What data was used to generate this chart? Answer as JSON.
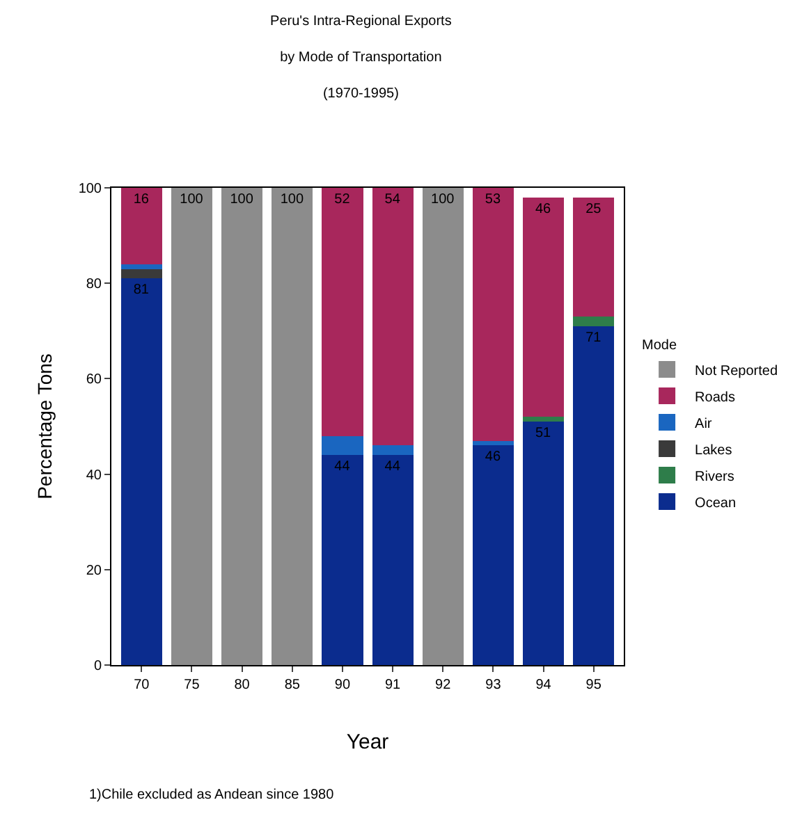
{
  "chart_data": {
    "type": "bar",
    "stacked": true,
    "title": "Peru's Intra-Regional Exports",
    "subtitle": "by Mode of Transportation\n(1970-1995)",
    "xlabel": "Year",
    "ylabel": "Percentage Tons",
    "legend_title": "Mode",
    "legend": "right",
    "grid": false,
    "categories": [
      "70",
      "75",
      "80",
      "85",
      "90",
      "91",
      "92",
      "93",
      "94",
      "95"
    ],
    "ylim": [
      0,
      100
    ],
    "yticks": [
      0,
      20,
      40,
      60,
      80,
      100
    ],
    "series": [
      {
        "name": "Ocean",
        "color": "#0b2c8e",
        "values": [
          81,
          null,
          null,
          null,
          44,
          44,
          null,
          46,
          51,
          71
        ],
        "value_labels": [
          "81",
          null,
          null,
          null,
          "44",
          "44",
          null,
          "46",
          "51",
          "71"
        ]
      },
      {
        "name": "Rivers",
        "color": "#2e7d4a",
        "values": [
          null,
          null,
          null,
          null,
          null,
          null,
          null,
          null,
          1,
          2
        ]
      },
      {
        "name": "Lakes",
        "color": "#3a3a3a",
        "values": [
          2,
          null,
          null,
          null,
          null,
          null,
          null,
          null,
          null,
          null
        ]
      },
      {
        "name": "Air",
        "color": "#1a66c0",
        "values": [
          1,
          null,
          null,
          null,
          4,
          2,
          null,
          1,
          null,
          null
        ]
      },
      {
        "name": "Roads",
        "color": "#a8275c",
        "values": [
          16,
          null,
          null,
          null,
          52,
          54,
          null,
          53,
          46,
          25
        ],
        "value_labels": [
          "16",
          null,
          null,
          null,
          "52",
          "54",
          null,
          "53",
          "46",
          "25"
        ]
      },
      {
        "name": "Not Reported",
        "color": "#8c8c8c",
        "values": [
          null,
          100,
          100,
          100,
          null,
          null,
          100,
          null,
          null,
          null
        ],
        "value_labels": [
          null,
          "100",
          "100",
          "100",
          null,
          null,
          "100",
          null,
          null,
          null
        ]
      }
    ],
    "annotations": [
      "1)Chile excluded as Andean since 1980"
    ]
  }
}
